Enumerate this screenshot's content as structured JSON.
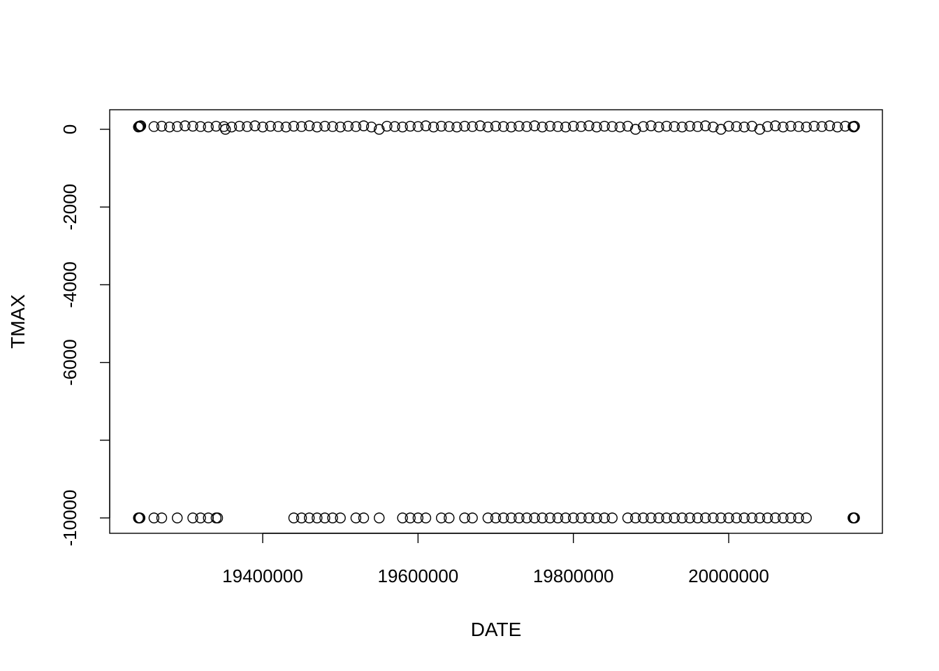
{
  "chart_data": {
    "type": "scatter",
    "title": "",
    "xlabel": "DATE",
    "ylabel": "TMAX",
    "xlim": [
      19220000,
      20200000
    ],
    "ylim": [
      -10000,
      0
    ],
    "x_ticks": [
      19400000,
      19600000,
      19800000,
      20000000
    ],
    "x_tick_labels": [
      "19400000",
      "19600000",
      "19800000",
      "20000000"
    ],
    "y_ticks": [
      0,
      -2000,
      -4000,
      -6000,
      -8000,
      -10000
    ],
    "y_tick_labels": [
      "0",
      "-2000",
      "-4000",
      "-6000",
      "",
      "-10000"
    ],
    "grid": false,
    "legend": "none",
    "series": [
      {
        "points": [
          [
            19240000,
            60
          ],
          [
            19241000,
            80
          ],
          [
            19242000,
            70
          ],
          [
            19243000,
            90
          ],
          [
            19260000,
            70
          ],
          [
            19270000,
            80
          ],
          [
            19280000,
            60
          ],
          [
            19290000,
            70
          ],
          [
            19300000,
            90
          ],
          [
            19310000,
            80
          ],
          [
            19320000,
            70
          ],
          [
            19330000,
            60
          ],
          [
            19340000,
            80
          ],
          [
            19350000,
            70
          ],
          [
            19352000,
            0
          ],
          [
            19360000,
            60
          ],
          [
            19370000,
            80
          ],
          [
            19380000,
            70
          ],
          [
            19390000,
            90
          ],
          [
            19400000,
            60
          ],
          [
            19410000,
            80
          ],
          [
            19420000,
            70
          ],
          [
            19430000,
            60
          ],
          [
            19440000,
            80
          ],
          [
            19450000,
            70
          ],
          [
            19460000,
            90
          ],
          [
            19470000,
            60
          ],
          [
            19480000,
            80
          ],
          [
            19490000,
            70
          ],
          [
            19500000,
            60
          ],
          [
            19510000,
            80
          ],
          [
            19520000,
            70
          ],
          [
            19530000,
            90
          ],
          [
            19540000,
            60
          ],
          [
            19550000,
            0
          ],
          [
            19560000,
            80
          ],
          [
            19570000,
            70
          ],
          [
            19580000,
            60
          ],
          [
            19590000,
            80
          ],
          [
            19600000,
            70
          ],
          [
            19610000,
            90
          ],
          [
            19620000,
            60
          ],
          [
            19630000,
            80
          ],
          [
            19640000,
            70
          ],
          [
            19650000,
            60
          ],
          [
            19660000,
            80
          ],
          [
            19670000,
            70
          ],
          [
            19680000,
            90
          ],
          [
            19690000,
            60
          ],
          [
            19700000,
            80
          ],
          [
            19710000,
            70
          ],
          [
            19720000,
            60
          ],
          [
            19730000,
            80
          ],
          [
            19740000,
            70
          ],
          [
            19750000,
            90
          ],
          [
            19760000,
            60
          ],
          [
            19770000,
            80
          ],
          [
            19780000,
            70
          ],
          [
            19790000,
            60
          ],
          [
            19800000,
            80
          ],
          [
            19810000,
            70
          ],
          [
            19820000,
            90
          ],
          [
            19830000,
            60
          ],
          [
            19840000,
            80
          ],
          [
            19850000,
            70
          ],
          [
            19860000,
            60
          ],
          [
            19870000,
            80
          ],
          [
            19880000,
            0
          ],
          [
            19890000,
            70
          ],
          [
            19900000,
            90
          ],
          [
            19910000,
            60
          ],
          [
            19920000,
            80
          ],
          [
            19930000,
            70
          ],
          [
            19940000,
            60
          ],
          [
            19950000,
            80
          ],
          [
            19960000,
            70
          ],
          [
            19970000,
            90
          ],
          [
            19980000,
            60
          ],
          [
            19990000,
            0
          ],
          [
            20000000,
            80
          ],
          [
            20010000,
            70
          ],
          [
            20020000,
            60
          ],
          [
            20030000,
            80
          ],
          [
            20040000,
            0
          ],
          [
            20050000,
            70
          ],
          [
            20060000,
            90
          ],
          [
            20070000,
            60
          ],
          [
            20080000,
            80
          ],
          [
            20090000,
            70
          ],
          [
            20100000,
            60
          ],
          [
            20110000,
            80
          ],
          [
            20120000,
            70
          ],
          [
            20130000,
            90
          ],
          [
            20140000,
            60
          ],
          [
            20150000,
            80
          ],
          [
            20160000,
            70
          ],
          [
            20161000,
            60
          ],
          [
            20162000,
            80
          ],
          [
            19240000,
            -10000
          ],
          [
            19241000,
            -10000
          ],
          [
            19242000,
            -10000
          ],
          [
            19260000,
            -10000
          ],
          [
            19270000,
            -10000
          ],
          [
            19290000,
            -10000
          ],
          [
            19310000,
            -10000
          ],
          [
            19320000,
            -10000
          ],
          [
            19330000,
            -10000
          ],
          [
            19340000,
            -10000
          ],
          [
            19342000,
            -10000
          ],
          [
            19440000,
            -10000
          ],
          [
            19450000,
            -10000
          ],
          [
            19460000,
            -10000
          ],
          [
            19470000,
            -10000
          ],
          [
            19480000,
            -10000
          ],
          [
            19490000,
            -10000
          ],
          [
            19500000,
            -10000
          ],
          [
            19520000,
            -10000
          ],
          [
            19530000,
            -10000
          ],
          [
            19550000,
            -10000
          ],
          [
            19580000,
            -10000
          ],
          [
            19590000,
            -10000
          ],
          [
            19600000,
            -10000
          ],
          [
            19610000,
            -10000
          ],
          [
            19630000,
            -10000
          ],
          [
            19640000,
            -10000
          ],
          [
            19660000,
            -10000
          ],
          [
            19670000,
            -10000
          ],
          [
            19690000,
            -10000
          ],
          [
            19700000,
            -10000
          ],
          [
            19710000,
            -10000
          ],
          [
            19720000,
            -10000
          ],
          [
            19730000,
            -10000
          ],
          [
            19740000,
            -10000
          ],
          [
            19750000,
            -10000
          ],
          [
            19760000,
            -10000
          ],
          [
            19770000,
            -10000
          ],
          [
            19780000,
            -10000
          ],
          [
            19790000,
            -10000
          ],
          [
            19800000,
            -10000
          ],
          [
            19810000,
            -10000
          ],
          [
            19820000,
            -10000
          ],
          [
            19830000,
            -10000
          ],
          [
            19840000,
            -10000
          ],
          [
            19850000,
            -10000
          ],
          [
            19870000,
            -10000
          ],
          [
            19880000,
            -10000
          ],
          [
            19890000,
            -10000
          ],
          [
            19900000,
            -10000
          ],
          [
            19910000,
            -10000
          ],
          [
            19920000,
            -10000
          ],
          [
            19930000,
            -10000
          ],
          [
            19940000,
            -10000
          ],
          [
            19950000,
            -10000
          ],
          [
            19960000,
            -10000
          ],
          [
            19970000,
            -10000
          ],
          [
            19980000,
            -10000
          ],
          [
            19990000,
            -10000
          ],
          [
            20000000,
            -10000
          ],
          [
            20010000,
            -10000
          ],
          [
            20020000,
            -10000
          ],
          [
            20030000,
            -10000
          ],
          [
            20040000,
            -10000
          ],
          [
            20050000,
            -10000
          ],
          [
            20060000,
            -10000
          ],
          [
            20070000,
            -10000
          ],
          [
            20080000,
            -10000
          ],
          [
            20090000,
            -10000
          ],
          [
            20100000,
            -10000
          ],
          [
            20160000,
            -10000
          ],
          [
            20161000,
            -10000
          ],
          [
            20162000,
            -10000
          ]
        ]
      }
    ]
  }
}
